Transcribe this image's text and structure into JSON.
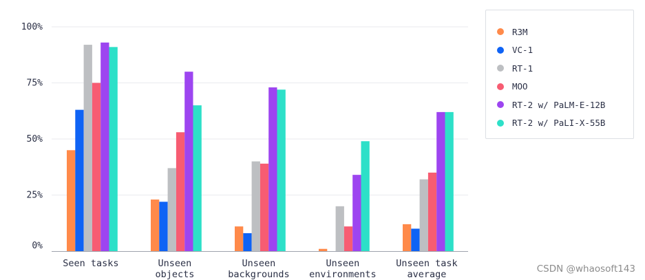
{
  "chart_data": {
    "type": "bar",
    "categories": [
      [
        "Seen tasks"
      ],
      [
        "Unseen",
        "objects"
      ],
      [
        "Unseen",
        "backgrounds"
      ],
      [
        "Unseen",
        "environments"
      ],
      [
        "Unseen task",
        "average"
      ]
    ],
    "series": [
      {
        "name": "R3M",
        "color": "#ff8a4a",
        "values": [
          45,
          23,
          11,
          1,
          12
        ]
      },
      {
        "name": "VC-1",
        "color": "#0f63f5",
        "values": [
          63,
          22,
          8,
          0,
          10
        ]
      },
      {
        "name": "RT-1",
        "color": "#bdbfc2",
        "values": [
          92,
          37,
          40,
          20,
          32
        ]
      },
      {
        "name": "MOO",
        "color": "#f75c72",
        "values": [
          75,
          53,
          39,
          11,
          35
        ]
      },
      {
        "name": "RT-2 w/ PaLM-E-12B",
        "color": "#9d45f0",
        "values": [
          93,
          80,
          73,
          34,
          62
        ]
      },
      {
        "name": "RT-2 w/ PaLI-X-55B",
        "color": "#2de0c8",
        "values": [
          91,
          65,
          72,
          49,
          62
        ]
      }
    ],
    "yticks": [
      "0%",
      "25%",
      "50%",
      "75%",
      "100%"
    ],
    "ytick_values": [
      0,
      25,
      50,
      75,
      100
    ],
    "ylim": [
      0,
      100
    ],
    "grid": true,
    "legend_position": "top-right"
  },
  "watermark": "CSDN @whaosoft143"
}
